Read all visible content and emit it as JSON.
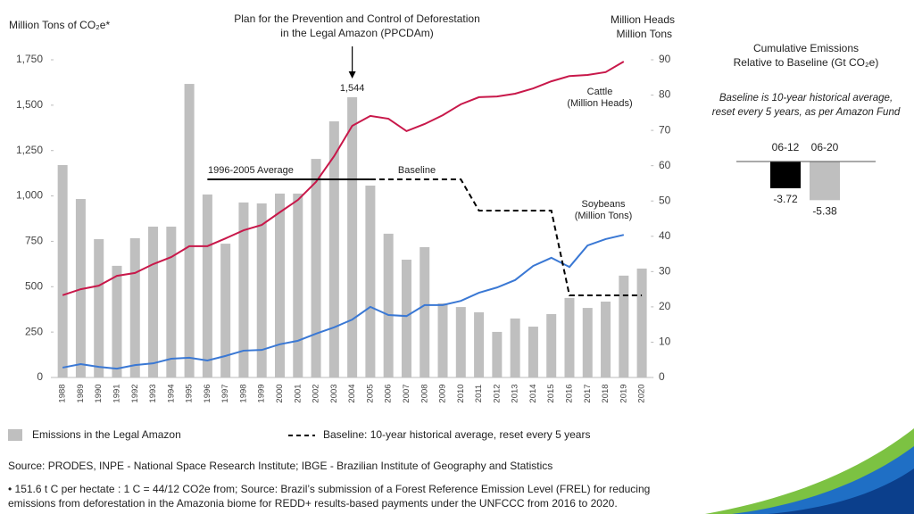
{
  "chart_data": [
    {
      "type": "bar",
      "name": "Emissions in the Legal Amazon",
      "y_label": "Million Tons of CO₂e*",
      "y2_label": [
        "Million Heads",
        "Million Tons"
      ],
      "categories": [
        "1988",
        "1989",
        "1990",
        "1991",
        "1992",
        "1993",
        "1994",
        "1995",
        "1996",
        "1997",
        "1998",
        "1999",
        "2000",
        "2001",
        "2002",
        "2003",
        "2004",
        "2005",
        "2006",
        "2007",
        "2008",
        "2009",
        "2010",
        "2011",
        "2012",
        "2013",
        "2014",
        "2015",
        "2016",
        "2017",
        "2018",
        "2019",
        "2020"
      ],
      "values": [
        1170,
        983,
        762,
        615,
        767,
        831,
        831,
        1617,
        1008,
        737,
        964,
        959,
        1013,
        1013,
        1204,
        1411,
        1544,
        1057,
        792,
        649,
        718,
        408,
        388,
        359,
        251,
        325,
        280,
        349,
        438,
        383,
        418,
        561,
        600
      ],
      "value_labels": [
        null,
        null,
        null,
        null,
        null,
        null,
        null,
        null,
        null,
        null,
        null,
        null,
        null,
        null,
        null,
        null,
        "1,544",
        null,
        null,
        null,
        null,
        null,
        null,
        null,
        null,
        null,
        null,
        null,
        null,
        null,
        null,
        null,
        null
      ],
      "color": "#bfbfbf",
      "ylim": [
        0,
        1750
      ],
      "yticks": [
        0,
        250,
        500,
        750,
        {
          "value": 1000,
          "label": "1,000"
        },
        {
          "value": 1250,
          "label": "1,250"
        },
        {
          "value": 1500,
          "label": "1,500"
        },
        {
          "value": 1750,
          "label": "1,750"
        }
      ],
      "y2lim": [
        0,
        90
      ],
      "y2ticks": [
        0,
        10,
        20,
        30,
        40,
        50,
        60,
        70,
        80,
        90
      ],
      "series": [
        {
          "name": "Cattle",
          "unit": "(Million Heads)",
          "color": "#c8184a",
          "axis": "y2",
          "dashed": false,
          "values": [
            23.3,
            25.0,
            26.0,
            28.8,
            29.6,
            32.1,
            34.1,
            37.2,
            37.2,
            39.4,
            41.7,
            43.2,
            46.8,
            50.3,
            55.4,
            62.7,
            71.3,
            74.1,
            73.3,
            69.8,
            71.8,
            74.3,
            77.4,
            79.4,
            79.6,
            80.4,
            81.9,
            83.9,
            85.4,
            85.7,
            86.5,
            89.5,
            null
          ]
        },
        {
          "name": "Soybeans",
          "unit": "(Million Tons)",
          "color": "#3a78d4",
          "axis": "y2",
          "dashed": false,
          "values": [
            2.8,
            3.8,
            3.0,
            2.5,
            3.5,
            4.0,
            5.3,
            5.6,
            4.8,
            6.1,
            7.6,
            7.8,
            9.4,
            10.4,
            12.4,
            14.2,
            16.4,
            20.0,
            17.7,
            17.4,
            20.5,
            20.5,
            21.7,
            24.0,
            25.5,
            27.6,
            31.6,
            33.9,
            31.3,
            37.4,
            39.2,
            40.4,
            null
          ]
        },
        {
          "name": "1996-2005 Average",
          "color": "#000000",
          "axis": "y",
          "dashed": false,
          "values": [
            null,
            null,
            null,
            null,
            null,
            null,
            null,
            null,
            1091,
            1091,
            1091,
            1091,
            1091,
            1091,
            1091,
            1091,
            1091,
            1091,
            null,
            null,
            null,
            null,
            null,
            null,
            null,
            null,
            null,
            null,
            null,
            null,
            null,
            null,
            null
          ]
        },
        {
          "name": "Baseline",
          "legend": "Baseline: 10-year historical average, reset every 5 years",
          "color": "#000000",
          "axis": "y",
          "dashed": true,
          "values": [
            null,
            null,
            null,
            null,
            null,
            null,
            null,
            null,
            null,
            null,
            null,
            null,
            null,
            null,
            null,
            null,
            null,
            1091,
            1091,
            1091,
            1091,
            1091,
            1091,
            919,
            919,
            919,
            919,
            919,
            452,
            452,
            452,
            452,
            452
          ]
        }
      ],
      "annotation": {
        "text": [
          "Plan for the Prevention and Control of Deforestation",
          "in the Legal Amazon (PPCDAm)"
        ],
        "category": "2004"
      }
    },
    {
      "type": "bar",
      "title": [
        "Cumulative Emissions",
        "Relative to Baseline (Gt CO₂e)"
      ],
      "subtitle": [
        "Baseline is 10-year historical average,",
        "reset every 5 years, as per Amazon Fund"
      ],
      "categories": [
        "06-12",
        "06-20"
      ],
      "values": [
        -3.72,
        -5.38
      ],
      "colors": [
        "#000000",
        "#bfbfbf"
      ],
      "ylim": [
        -6,
        0
      ]
    }
  ],
  "footer": {
    "source": "Source: PRODES, INPE - National Space Research Institute;  IBGE - Brazilian Institute  of Geography and Statistics",
    "note": [
      "•  151.6 t C per hectate : 1 C = 44/12 CO2e from; Source: Brazil’s submission of a Forest Reference Emission Level (FREL) for reducing",
      "emissions from deforestation in the Amazonia biome for REDD+ results-based payments under the UNFCCC from 2016 to 2020."
    ]
  }
}
